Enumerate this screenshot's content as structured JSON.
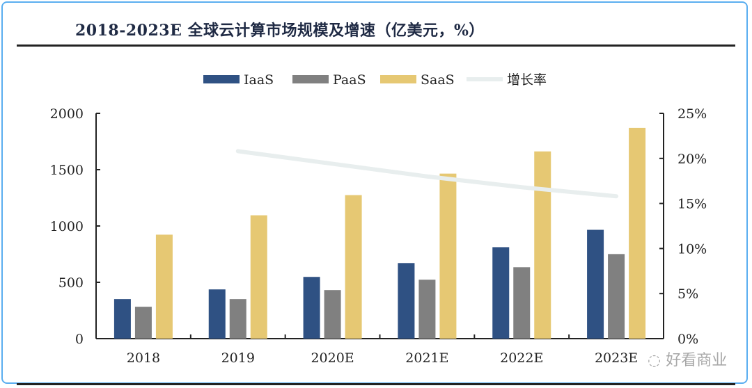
{
  "chart_data": {
    "type": "bar",
    "title": "2018-2023E 全球云计算市场规模及增速（亿美元，%）",
    "categories": [
      "2018",
      "2019",
      "2020E",
      "2021E",
      "2022E",
      "2023E"
    ],
    "series": [
      {
        "name": "IaaS",
        "type": "bar",
        "axis": "left",
        "color": "#2f5183",
        "values": [
          351,
          437,
          548,
          671,
          812,
          966
        ]
      },
      {
        "name": "PaaS",
        "type": "bar",
        "axis": "left",
        "color": "#808080",
        "values": [
          283,
          351,
          431,
          523,
          634,
          751
        ]
      },
      {
        "name": "SaaS",
        "type": "bar",
        "axis": "left",
        "color": "#e6c873",
        "values": [
          923,
          1095,
          1274,
          1465,
          1662,
          1871
        ]
      },
      {
        "name": "增长率",
        "type": "line",
        "axis": "right",
        "color": "#e8eeee",
        "values": [
          null,
          20.8,
          19.4,
          18.0,
          16.8,
          15.8
        ]
      }
    ],
    "y_left": {
      "range": [
        0,
        2000
      ],
      "ticks": [
        "0",
        "500",
        "1000",
        "1500",
        "2000"
      ]
    },
    "y_right": {
      "range": [
        0,
        25
      ],
      "ticks": [
        "0%",
        "5%",
        "10%",
        "15%",
        "20%",
        "25%"
      ]
    },
    "legend_position": "top",
    "grid": false
  },
  "watermark": "好看商业"
}
